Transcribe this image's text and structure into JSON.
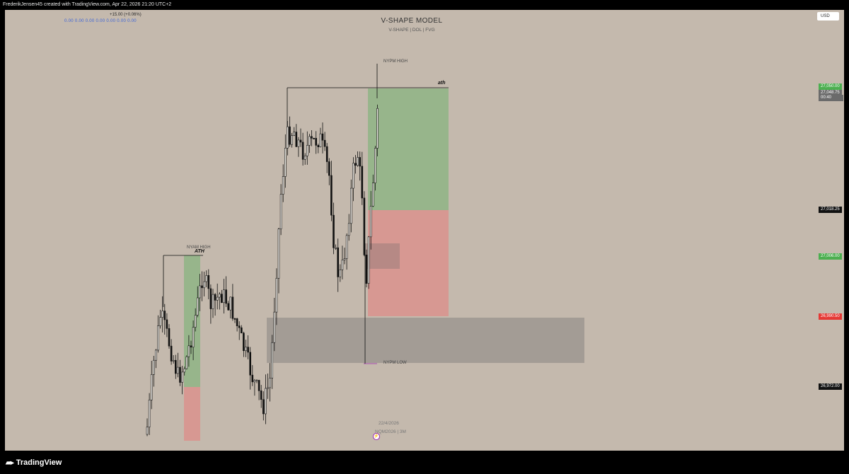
{
  "header": {
    "attribution": "FrederikJensen45 created with TradingView.com, Apr 22, 2026 21:20 UTC+2"
  },
  "legend": {
    "change": "+15.00 (+0.06%)",
    "values": "0.00  0.00  0.00  0.00  0.00  0.00  0.00"
  },
  "chart": {
    "title": "V-SHAPE MODEL",
    "subtitle": "V-SHAPE  |  DOL  |  FVG",
    "currency_button": "USD",
    "date": "22/4/2026",
    "symbol": "NQM2026  |  3M",
    "annotations": {
      "nypm_high": "NYPM HIGH",
      "nypm_low": "NYPM LOW",
      "nyam_high": "NYAM HIGH",
      "ath_right": "ath",
      "ath_left": "ATH"
    },
    "colors": {
      "background": "#c4b9ad",
      "profit_zone": "#7fb27a",
      "loss_zone": "#e08a86",
      "fvg_zone": "#9e9690",
      "candle": "#111111"
    }
  },
  "price_scale": {
    "tags": [
      {
        "price": "27,050.00",
        "style": "green"
      },
      {
        "price": "27,048.75",
        "style": "gray"
      },
      {
        "price": "27,018.25",
        "style": "black"
      },
      {
        "price": "27,006.00",
        "style": "green"
      },
      {
        "price": "26,990.50",
        "style": "red"
      },
      {
        "price": "26,972.00",
        "style": "black"
      }
    ],
    "countdown": "00:40"
  },
  "footer": {
    "brand": "TradingView"
  }
}
